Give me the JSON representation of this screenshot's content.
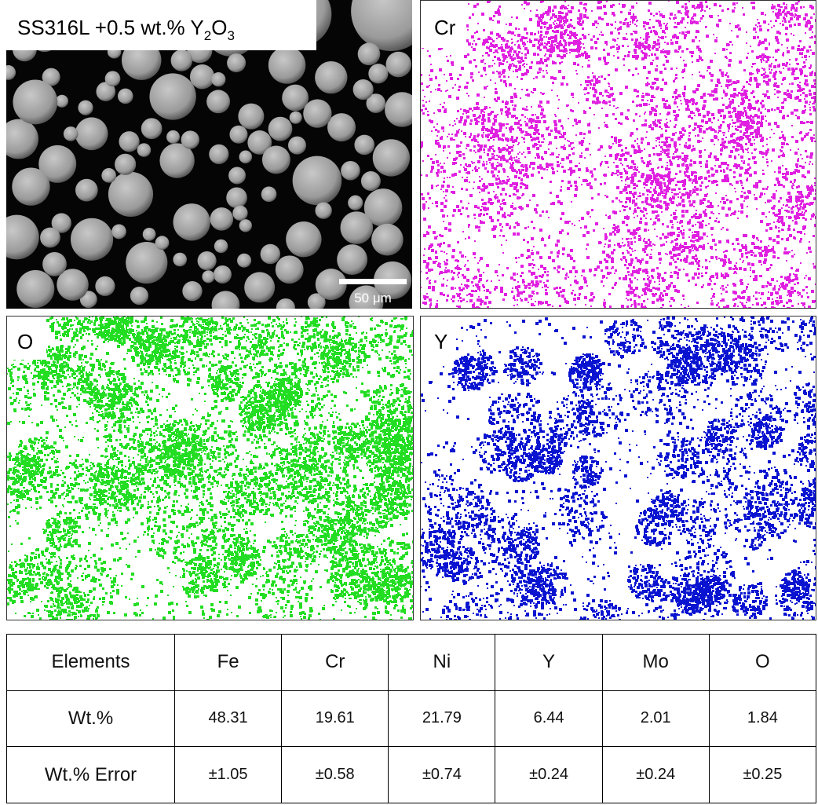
{
  "panels": {
    "sem": {
      "label": [
        "SS316L +0.5 wt.% Y",
        "2",
        "O",
        "3"
      ],
      "scale_bar": "50 μm"
    },
    "cr": {
      "label": "Cr"
    },
    "o": {
      "label": "O"
    },
    "y": {
      "label": "Y"
    }
  },
  "table": {
    "header": [
      "Elements",
      "Fe",
      "Cr",
      "Ni",
      "Y",
      "Mo",
      "O"
    ],
    "rows": [
      [
        "Wt.%",
        48.31,
        19.61,
        21.79,
        6.44,
        2.01,
        1.84
      ],
      [
        "Wt.% Error",
        "±1.05",
        "±0.58",
        "±0.74",
        "±0.24",
        "±0.24",
        "±0.25"
      ]
    ]
  }
}
